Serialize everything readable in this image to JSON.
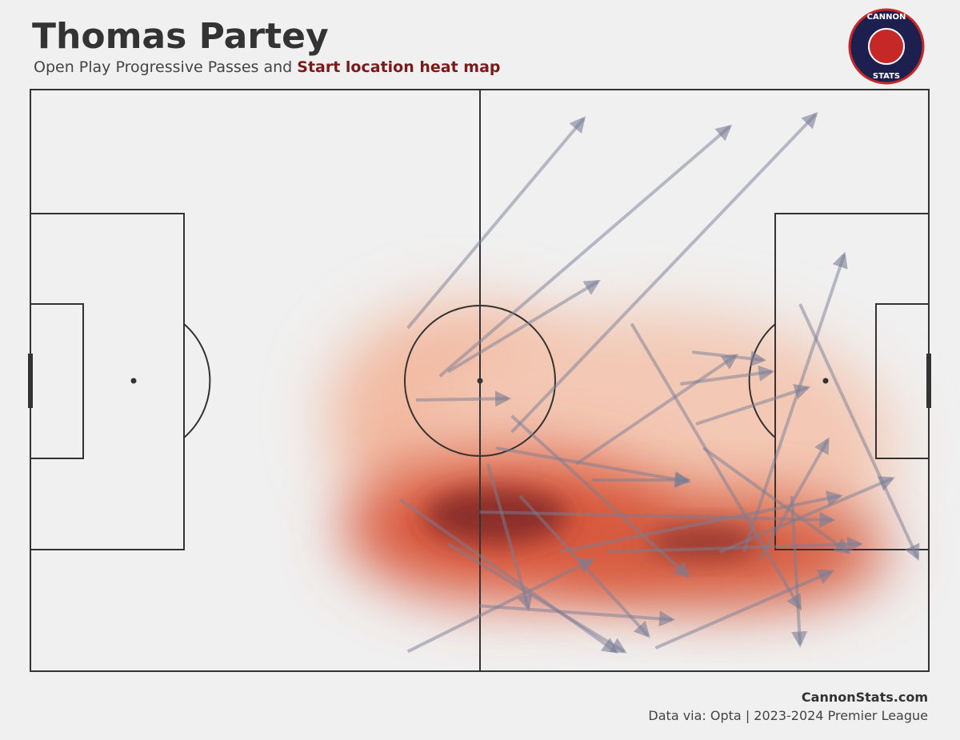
{
  "chart_data": {
    "type": "passmap",
    "title": "Thomas Partey",
    "subtitle": "Open Play Progressive Passes and",
    "subtitle_highlight": "Start location heat map",
    "logo_top": "CANNON",
    "logo_bottom": "STATS",
    "source_site": "CannonStats.com",
    "source_note": "Data via: Opta | 2023-2024 Premier League",
    "xlim": [
      0,
      120
    ],
    "ylim": [
      0,
      80
    ],
    "color": "#7a7d96",
    "x": [
      50.4,
      54.7,
      64.3,
      55.8,
      51.5,
      80.3,
      102.8,
      95.3,
      88.4,
      88.9,
      97.4,
      49.4,
      50.4,
      62.2,
      75.0,
      64.3,
      60.0,
      83.5,
      70.7,
      92.1,
      77.1,
      55.8,
      65.4,
      61.1,
      72.9,
      89.9,
      101.7,
      60.0,
      86.8
    ],
    "y": [
      32.8,
      39.4,
      47.1,
      38.8,
      42.7,
      32.2,
      29.5,
      63.6,
      36.1,
      46.0,
      64.7,
      56.4,
      77.3,
      49.3,
      53.7,
      44.9,
      71.0,
      76.8,
      63.6,
      63.6,
      63.6,
      62.5,
      55.9,
      51.5,
      51.5,
      49.3,
      55.9,
      58.1,
      40.5
    ],
    "x_end": [
      73.9,
      93.4,
      104.9,
      75.8,
      63.8,
      102.8,
      118.5,
      108.7,
      97.9,
      103.8,
      106.5,
      78.2,
      75.0,
      87.8,
      87.8,
      87.8,
      85.7,
      107.0,
      108.1,
      115.1,
      110.8,
      79.3,
      82.5,
      66.5,
      94.2,
      109.2,
      102.8,
      107.1,
      99.0
    ],
    "y_end": [
      4.0,
      5.1,
      3.4,
      26.4,
      42.5,
      71.3,
      64.4,
      22.7,
      37.2,
      41.0,
      48.2,
      77.3,
      64.7,
      53.9,
      53.7,
      66.9,
      72.9,
      66.3,
      55.9,
      53.5,
      62.5,
      77.3,
      75.1,
      71.3,
      36.6,
      63.6,
      76.3,
      59.2,
      38.8
    ]
  }
}
